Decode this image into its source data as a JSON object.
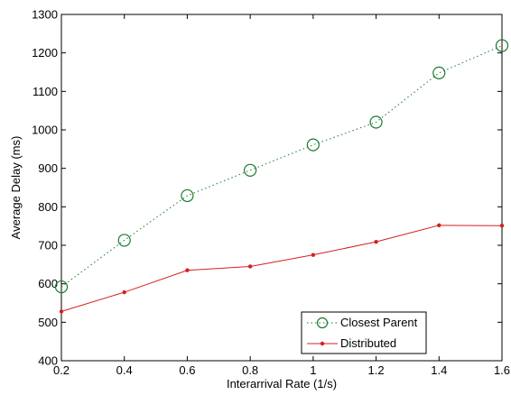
{
  "chart_data": {
    "type": "line",
    "title": "",
    "xlabel": "Interarrival Rate (1/s)",
    "ylabel": "Average Delay (ms)",
    "xlim": [
      0.2,
      1.6
    ],
    "ylim": [
      400,
      1300
    ],
    "xticks": [
      0.2,
      0.4,
      0.6,
      0.8,
      1.0,
      1.2,
      1.4,
      1.6
    ],
    "xtick_labels": [
      "0.2",
      "0.4",
      "0.6",
      "0.8",
      "1",
      "1.2",
      "1.4",
      "1.6"
    ],
    "yticks": [
      400,
      500,
      600,
      700,
      800,
      900,
      1000,
      1100,
      1200,
      1300
    ],
    "ytick_labels": [
      "400",
      "500",
      "600",
      "700",
      "800",
      "900",
      "1000",
      "1100",
      "1200",
      "1300"
    ],
    "grid": false,
    "legend_position": "bottom-right",
    "x": [
      0.2,
      0.4,
      0.6,
      0.8,
      1.0,
      1.2,
      1.4,
      1.6
    ],
    "series": [
      {
        "name": "Closest Parent",
        "values": [
          592,
          713,
          829,
          895,
          961,
          1020,
          1148,
          1219
        ],
        "color": "#1a7a2e",
        "line_style": "dotted",
        "marker": "open-circle"
      },
      {
        "name": "Distributed",
        "values": [
          528,
          578,
          635,
          645,
          675,
          709,
          752,
          751
        ],
        "color": "#d42020",
        "line_style": "solid",
        "marker": "dot"
      }
    ]
  }
}
